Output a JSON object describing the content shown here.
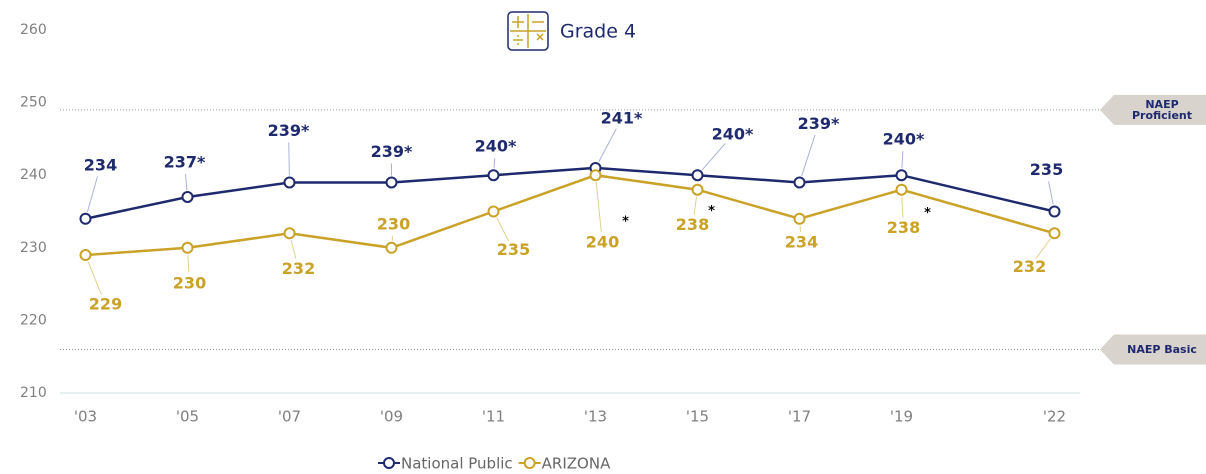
{
  "chart_data": {
    "type": "line",
    "title": "Grade 4",
    "x": [
      3,
      5,
      7,
      9,
      11,
      13,
      15,
      17,
      19,
      22
    ],
    "xlim": [
      2.5,
      22.5
    ],
    "xticks": [
      {
        "value": 3,
        "label": "'03"
      },
      {
        "value": 5,
        "label": "'05"
      },
      {
        "value": 7,
        "label": "'07"
      },
      {
        "value": 9,
        "label": "'09"
      },
      {
        "value": 11,
        "label": "'11"
      },
      {
        "value": 13,
        "label": "'13"
      },
      {
        "value": 15,
        "label": "'15"
      },
      {
        "value": 17,
        "label": "'17"
      },
      {
        "value": 19,
        "label": "'19"
      },
      {
        "value": 22,
        "label": "'22"
      }
    ],
    "ylim": [
      210,
      260
    ],
    "yticks": [
      210,
      220,
      230,
      240,
      250,
      260
    ],
    "series": [
      {
        "name": "National Public",
        "color": "#1f2a6e",
        "values": [
          234,
          237,
          239,
          239,
          240,
          241,
          240,
          239,
          240,
          235
        ],
        "value_labels": [
          "234",
          "237*",
          "239*",
          "239*",
          "240*",
          "241*",
          "240*",
          "239*",
          "240*",
          "235"
        ]
      },
      {
        "name": "ARIZONA",
        "color": "#c9a227",
        "values": [
          229,
          230,
          232,
          230,
          235,
          240,
          238,
          234,
          238,
          232
        ],
        "flags": [
          null,
          null,
          null,
          null,
          null,
          "*",
          "*",
          null,
          "*",
          null
        ]
      }
    ],
    "reference_lines": [
      {
        "label": "NAEP Proficient",
        "value": 249
      },
      {
        "label": "NAEP Basic",
        "value": 216
      }
    ]
  }
}
